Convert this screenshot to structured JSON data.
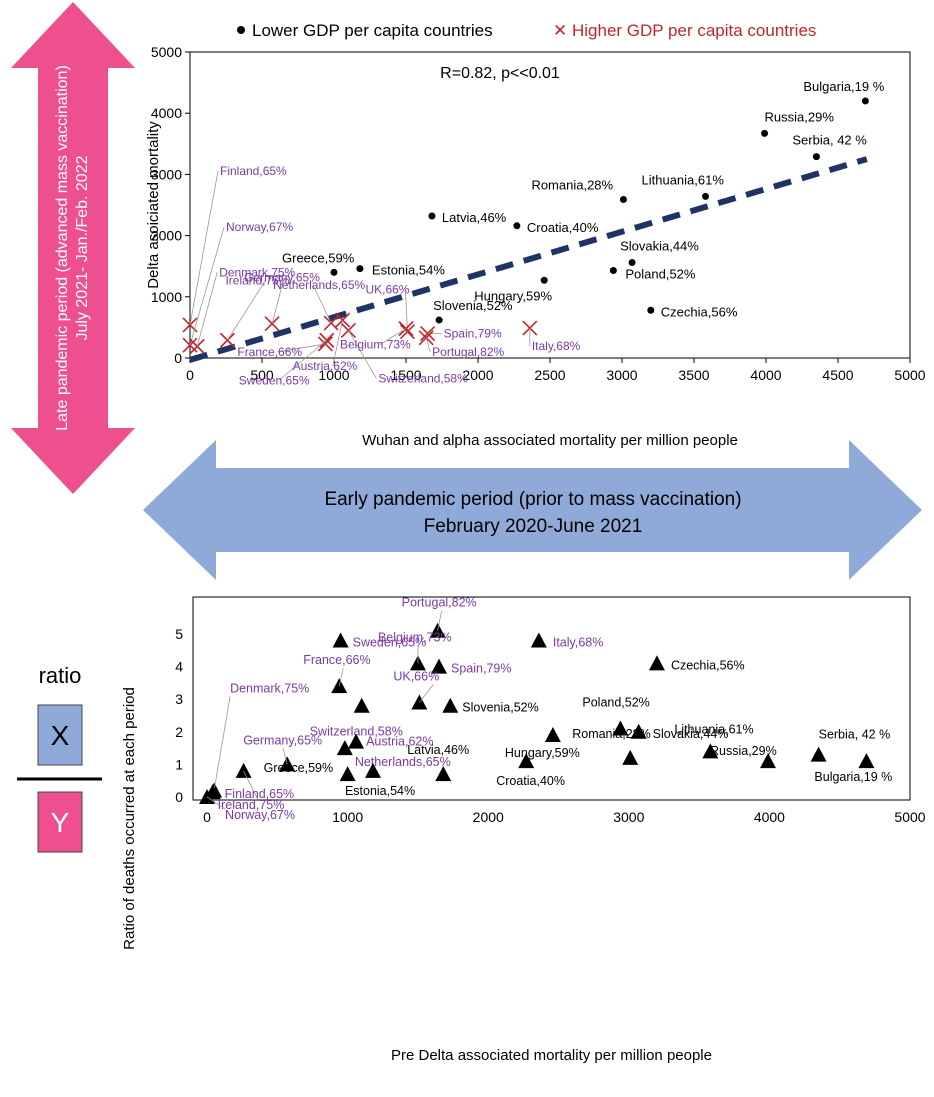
{
  "colors": {
    "pink": "#ee4f8f",
    "blue_arrow": "#8fa9d9",
    "trend": "#1f3366",
    "lower": "#000000",
    "higher": "#c0262c",
    "higher_label": "#7b3aa3",
    "text": "#000000"
  },
  "side_arrow": {
    "line1": "Late pandemic period (advanced mass vaccination)",
    "line2": "July 2021- Jan./Feb. 2022"
  },
  "center_arrow": {
    "line1": "Early pandemic period  (prior to mass vaccination)",
    "line2": "February 2020-June 2021"
  },
  "ratio_box": {
    "label": "ratio",
    "numerator": "X",
    "denominator": "Y"
  },
  "chart_data": [
    {
      "type": "scatter",
      "xlabel": "Wuhan and alpha associated mortality per million people",
      "ylabel": "Delta asoiciated mortality",
      "xlim": [
        0,
        5000
      ],
      "ylim": [
        0,
        5000
      ],
      "xticks": [
        "0",
        "500",
        "1000",
        "1500",
        "2000",
        "2500",
        "3000",
        "3500",
        "4000",
        "4500",
        "5000"
      ],
      "yticks": [
        "0",
        "1000",
        "2000",
        "3000",
        "4000",
        "5000"
      ],
      "annotation": "R=0.82, p<<0.01",
      "legend": [
        {
          "label": "Lower GDP per capita countries",
          "marker": "●"
        },
        {
          "label": "Higher GDP per capita countries",
          "marker": "✕"
        }
      ],
      "trendline": {
        "x": [
          0,
          4700
        ],
        "y": [
          -30,
          3250
        ]
      },
      "lower": [
        {
          "label": "Bulgaria,19 %",
          "x": 4690,
          "y": 4200
        },
        {
          "label": "Russia,29%",
          "x": 3990,
          "y": 3670
        },
        {
          "label": "Serbia, 42 %",
          "x": 4350,
          "y": 3290
        },
        {
          "label": "Lithuania,61%",
          "x": 3580,
          "y": 2640
        },
        {
          "label": "Romania,28%",
          "x": 3010,
          "y": 2590
        },
        {
          "label": "Latvia,46%",
          "x": 1680,
          "y": 2320
        },
        {
          "label": "Croatia,40%",
          "x": 2270,
          "y": 2160
        },
        {
          "label": "Greece,59%",
          "x": 1000,
          "y": 1400
        },
        {
          "label": "Estonia,54%",
          "x": 1180,
          "y": 1460
        },
        {
          "label": "Slovakia,44%",
          "x": 3070,
          "y": 1560
        },
        {
          "label": "Poland,52%",
          "x": 2940,
          "y": 1430
        },
        {
          "label": "Hungary,59%",
          "x": 2460,
          "y": 1270
        },
        {
          "label": "Czechia,56%",
          "x": 3200,
          "y": 780
        },
        {
          "label": "Slovenia,52%",
          "x": 1730,
          "y": 620
        }
      ],
      "higher": [
        {
          "label": "Finland,65%",
          "x": 0,
          "y": 540
        },
        {
          "label": "Norway,67%",
          "x": 0,
          "y": 210
        },
        {
          "label": "Denmark,75%",
          "x": 50,
          "y": 190
        },
        {
          "label": "Ireland,75%",
          "x": 260,
          "y": 290
        },
        {
          "label": "Germany,65%",
          "x": 570,
          "y": 560
        },
        {
          "label": "France,66%",
          "x": 940,
          "y": 230
        },
        {
          "label": "Netherlands,65%",
          "x": 980,
          "y": 570
        },
        {
          "label": "Sweden,65%",
          "x": 950,
          "y": 290
        },
        {
          "label": "Austria,62%",
          "x": 1060,
          "y": 620
        },
        {
          "label": "Switzerland,58%",
          "x": 1100,
          "y": 450
        },
        {
          "label": "UK,66%",
          "x": 1510,
          "y": 430
        },
        {
          "label": "Spain,79%",
          "x": 1650,
          "y": 400
        },
        {
          "label": "Belgium,73%",
          "x": 1500,
          "y": 480
        },
        {
          "label": "Portugal,82%",
          "x": 1640,
          "y": 330
        },
        {
          "label": "Italy,68%",
          "x": 2360,
          "y": 490
        }
      ]
    },
    {
      "type": "scatter",
      "xlabel": "Pre Delta associated mortality per million people",
      "ylabel": "Ratio of deaths occurred at each period",
      "xlim": [
        -100,
        5000
      ],
      "ylim": [
        -0.1,
        5.5
      ],
      "xticks": [
        "0",
        "1000",
        "2000",
        "3000",
        "4000",
        "5000"
      ],
      "yticks": [
        "0",
        "1",
        "2",
        "3",
        "4",
        "5"
      ],
      "points": [
        {
          "label": "Portugal,82%",
          "x": 1640,
          "y": 5.1,
          "group": "higher"
        },
        {
          "label": "Sweden,65%",
          "x": 950,
          "y": 4.8,
          "group": "higher"
        },
        {
          "label": "Italy,68%",
          "x": 2360,
          "y": 4.8,
          "group": "higher"
        },
        {
          "label": "Belgium,73%",
          "x": 1500,
          "y": 4.1,
          "group": "higher"
        },
        {
          "label": "Spain,79%",
          "x": 1650,
          "y": 4.0,
          "group": "higher"
        },
        {
          "label": "Czechia,56%",
          "x": 3200,
          "y": 4.1,
          "group": "lower"
        },
        {
          "label": "France,66%",
          "x": 940,
          "y": 3.4,
          "group": "higher"
        },
        {
          "label": "UK,66%",
          "x": 1510,
          "y": 2.9,
          "group": "higher"
        },
        {
          "label": "Switzerland,58%",
          "x": 1100,
          "y": 2.8,
          "group": "higher"
        },
        {
          "label": "Slovenia,52%",
          "x": 1730,
          "y": 2.8,
          "group": "lower"
        },
        {
          "label": "Poland,52%",
          "x": 2940,
          "y": 2.1,
          "group": "lower"
        },
        {
          "label": "Slovakia,44%",
          "x": 3070,
          "y": 2.0,
          "group": "lower"
        },
        {
          "label": "Hungary,59%",
          "x": 2460,
          "y": 1.9,
          "group": "lower"
        },
        {
          "label": "Austria,62%",
          "x": 1060,
          "y": 1.7,
          "group": "higher"
        },
        {
          "label": "Netherlands,65%",
          "x": 980,
          "y": 1.5,
          "group": "higher"
        },
        {
          "label": "Lithuania,61%",
          "x": 3580,
          "y": 1.4,
          "group": "lower"
        },
        {
          "label": "Serbia, 42 %",
          "x": 4350,
          "y": 1.3,
          "group": "lower"
        },
        {
          "label": "Romania,28%",
          "x": 3010,
          "y": 1.2,
          "group": "lower"
        },
        {
          "label": "Russia,29%",
          "x": 3990,
          "y": 1.1,
          "group": "lower"
        },
        {
          "label": "Bulgaria,19 %",
          "x": 4690,
          "y": 1.1,
          "group": "lower"
        },
        {
          "label": "Croatia,40%",
          "x": 2270,
          "y": 1.1,
          "group": "lower"
        },
        {
          "label": "Germany,65%",
          "x": 570,
          "y": 1.0,
          "group": "higher"
        },
        {
          "label": "Ireland,75%",
          "x": 260,
          "y": 0.8,
          "group": "higher"
        },
        {
          "label": "Greece,59%",
          "x": 1000,
          "y": 0.7,
          "group": "lower"
        },
        {
          "label": "Estonia,54%",
          "x": 1180,
          "y": 0.8,
          "group": "lower"
        },
        {
          "label": "Latvia,46%",
          "x": 1680,
          "y": 0.7,
          "group": "lower"
        },
        {
          "label": "Denmark,75%",
          "x": 50,
          "y": 0.2,
          "group": "higher"
        },
        {
          "label": "Finland,65%",
          "x": 40,
          "y": 0.15,
          "group": "higher"
        },
        {
          "label": "Norway,67%",
          "x": 0,
          "y": 0.0,
          "group": "higher"
        }
      ]
    }
  ]
}
